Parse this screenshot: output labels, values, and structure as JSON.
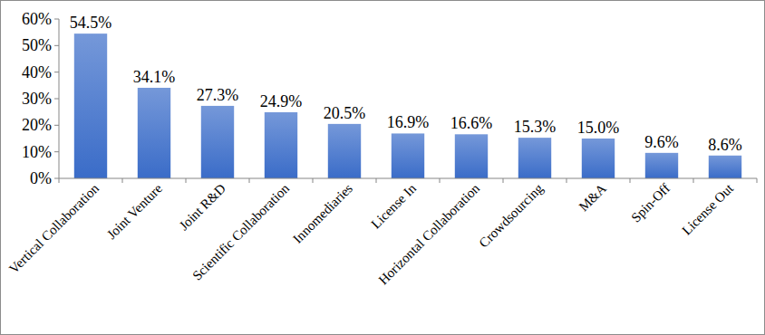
{
  "chart_data": {
    "type": "bar",
    "categories": [
      "Vertical Collaboration",
      "Joint Venture",
      "Joint R&D",
      "Scientific Collaboration",
      "Innomediaries",
      "License In",
      "Horizontal Collaboration",
      "Crowdsourcing",
      "M&A",
      "Spin-Off",
      "License Out"
    ],
    "values": [
      54.5,
      34.1,
      27.3,
      24.9,
      20.5,
      16.9,
      16.6,
      15.3,
      15.0,
      9.6,
      8.6
    ],
    "value_labels": [
      "54.5%",
      "34.1%",
      "27.3%",
      "24.9%",
      "20.5%",
      "16.9%",
      "16.6%",
      "15.3%",
      "15.0%",
      "9.6%",
      "8.6%"
    ],
    "color": "#3a6cc8",
    "ylim": [
      0,
      60
    ],
    "yticks": [
      {
        "value": 0,
        "label": "0%"
      },
      {
        "value": 10,
        "label": "10%"
      },
      {
        "value": 20,
        "label": "20%"
      },
      {
        "value": 30,
        "label": "30%"
      },
      {
        "value": 40,
        "label": "40%"
      },
      {
        "value": 50,
        "label": "50%"
      },
      {
        "value": 60,
        "label": "60%"
      }
    ],
    "grid": false,
    "data_labels": true
  }
}
